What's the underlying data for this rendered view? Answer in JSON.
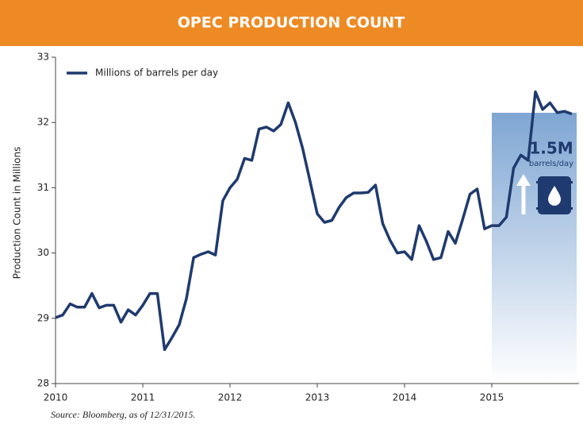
{
  "chart_data": {
    "type": "line",
    "title": "OPEC PRODUCTION COUNT",
    "y_label": "Production Count in Millions",
    "source": "Source: Bloomberg, as of 12/31/2015.",
    "annotation": "1.5M",
    "annotation_sub": "barrels/day",
    "shaded_from": 2015,
    "xlim": [
      2010,
      2016
    ],
    "xticks": [
      2010,
      2011,
      2012,
      2013,
      2014,
      2015
    ],
    "ylim": [
      28,
      33
    ],
    "yticks": [
      28,
      29,
      30,
      31,
      32,
      33
    ],
    "legend": "top-left",
    "x": [
      2010.0,
      2010.083,
      2010.167,
      2010.25,
      2010.333,
      2010.417,
      2010.5,
      2010.583,
      2010.667,
      2010.75,
      2010.833,
      2010.917,
      2011.0,
      2011.083,
      2011.167,
      2011.25,
      2011.333,
      2011.417,
      2011.5,
      2011.583,
      2011.667,
      2011.75,
      2011.833,
      2011.917,
      2012.0,
      2012.083,
      2012.167,
      2012.25,
      2012.333,
      2012.417,
      2012.5,
      2012.583,
      2012.667,
      2012.75,
      2012.833,
      2012.917,
      2013.0,
      2013.083,
      2013.167,
      2013.25,
      2013.333,
      2013.417,
      2013.5,
      2013.583,
      2013.667,
      2013.75,
      2013.833,
      2013.917,
      2014.0,
      2014.083,
      2014.167,
      2014.25,
      2014.333,
      2014.417,
      2014.5,
      2014.583,
      2014.667,
      2014.75,
      2014.833,
      2014.917,
      2015.0,
      2015.083,
      2015.167,
      2015.25,
      2015.333,
      2015.417,
      2015.5,
      2015.583,
      2015.667,
      2015.75,
      2015.833,
      2015.917
    ],
    "series": [
      {
        "name": "Millions of barrels per day",
        "color": "#1f3a6e",
        "values": [
          29.01,
          29.05,
          29.22,
          29.17,
          29.17,
          29.38,
          29.16,
          29.2,
          29.2,
          28.94,
          29.13,
          29.05,
          29.2,
          29.38,
          29.38,
          28.52,
          28.7,
          28.9,
          29.3,
          29.93,
          29.98,
          30.02,
          29.97,
          30.8,
          31.0,
          31.13,
          31.45,
          31.42,
          31.9,
          31.93,
          31.87,
          31.97,
          32.3,
          32.0,
          31.6,
          31.1,
          30.6,
          30.47,
          30.5,
          30.7,
          30.85,
          30.92,
          30.92,
          30.93,
          31.04,
          30.45,
          30.2,
          30.0,
          30.02,
          29.9,
          30.42,
          30.18,
          29.9,
          29.93,
          30.33,
          30.15,
          30.52,
          30.9,
          30.98,
          30.37,
          30.42,
          30.42,
          30.55,
          31.3,
          31.5,
          31.42,
          32.47,
          32.2,
          32.3,
          32.15,
          32.17,
          32.13
        ]
      }
    ]
  }
}
